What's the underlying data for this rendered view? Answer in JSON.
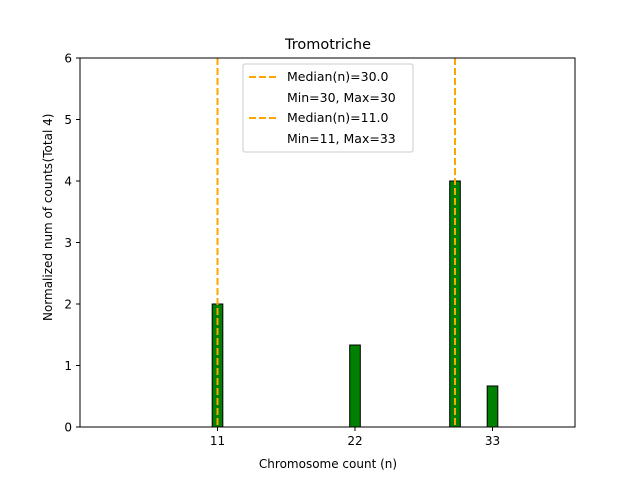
{
  "chart_data": {
    "type": "bar",
    "title": "Tromotriche",
    "xlabel": "Chromosome count (n)",
    "ylabel": "Normalized num of counts",
    "ylabel_extra": "(Total 4)",
    "xlim": [
      0,
      39.6
    ],
    "ylim": [
      0,
      6
    ],
    "xticks": [
      11,
      22,
      33
    ],
    "yticks": [
      0,
      1,
      2,
      3,
      4,
      5,
      6
    ],
    "bar_color": "#008000",
    "bar_width": 0.85,
    "bars": [
      {
        "x": 11,
        "value": 2.0
      },
      {
        "x": 22,
        "value": 1.333
      },
      {
        "x": 30,
        "value": 4.0
      },
      {
        "x": 33,
        "value": 0.667
      }
    ],
    "median_color": "#FFA500",
    "median_lines": [
      30,
      11
    ],
    "legend": {
      "placement": "upper-center",
      "entries": [
        {
          "label": "Median(n)=30.0",
          "sub": "Min=30, Max=30"
        },
        {
          "label": "Median(n)=11.0",
          "sub": "Min=11, Max=33"
        }
      ]
    }
  }
}
